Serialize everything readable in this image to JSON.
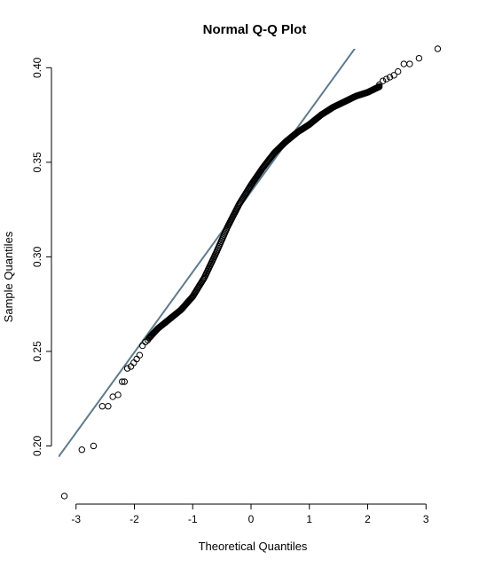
{
  "chart_data": {
    "type": "scatter",
    "title": "Normal Q-Q Plot",
    "xlabel": "Theoretical Quantiles",
    "ylabel": "Sample Quantiles",
    "xlim": [
      -3.3,
      3.3
    ],
    "ylim": [
      0.173,
      0.41
    ],
    "xticks": [
      -3,
      -2,
      -1,
      0,
      1,
      2,
      3
    ],
    "yticks": [
      0.2,
      0.25,
      0.3,
      0.35,
      0.4
    ],
    "ytick_labels": [
      "0.20",
      "0.25",
      "0.30",
      "0.35",
      "0.40"
    ],
    "grid": false,
    "reference_line": {
      "slope": 0.0425,
      "intercept": 0.3345,
      "color": "#5f7a8c"
    },
    "tail_points": [
      [
        -3.2,
        0.1735
      ],
      [
        -2.9,
        0.198
      ],
      [
        -2.7,
        0.2
      ],
      [
        -2.55,
        0.221
      ],
      [
        -2.45,
        0.221
      ],
      [
        -2.37,
        0.226
      ],
      [
        -2.28,
        0.227
      ],
      [
        -2.21,
        0.234
      ],
      [
        -2.17,
        0.234
      ],
      [
        -2.12,
        0.241
      ],
      [
        -2.06,
        0.242
      ],
      [
        -2.01,
        0.244
      ],
      [
        -1.96,
        0.246
      ],
      [
        -1.91,
        0.248
      ],
      [
        -1.86,
        0.253
      ],
      [
        -1.81,
        0.255
      ],
      [
        -1.77,
        0.256
      ],
      [
        -1.72,
        0.258
      ],
      [
        2.2,
        0.391
      ],
      [
        2.26,
        0.393
      ],
      [
        2.32,
        0.394
      ],
      [
        2.38,
        0.395
      ],
      [
        2.45,
        0.396
      ],
      [
        2.52,
        0.398
      ],
      [
        2.62,
        0.402
      ],
      [
        2.72,
        0.402
      ],
      [
        2.88,
        0.405
      ],
      [
        3.2,
        0.41
      ]
    ],
    "body_curve": [
      [
        -1.75,
        0.257
      ],
      [
        -1.6,
        0.262
      ],
      [
        -1.4,
        0.267
      ],
      [
        -1.2,
        0.272
      ],
      [
        -1.0,
        0.279
      ],
      [
        -0.8,
        0.289
      ],
      [
        -0.6,
        0.302
      ],
      [
        -0.4,
        0.316
      ],
      [
        -0.2,
        0.328
      ],
      [
        0.0,
        0.338
      ],
      [
        0.2,
        0.347
      ],
      [
        0.4,
        0.355
      ],
      [
        0.6,
        0.361
      ],
      [
        0.8,
        0.366
      ],
      [
        1.0,
        0.37
      ],
      [
        1.2,
        0.375
      ],
      [
        1.4,
        0.379
      ],
      [
        1.6,
        0.382
      ],
      [
        1.8,
        0.385
      ],
      [
        2.0,
        0.387
      ],
      [
        2.2,
        0.39
      ]
    ],
    "body_point_count": 340
  }
}
